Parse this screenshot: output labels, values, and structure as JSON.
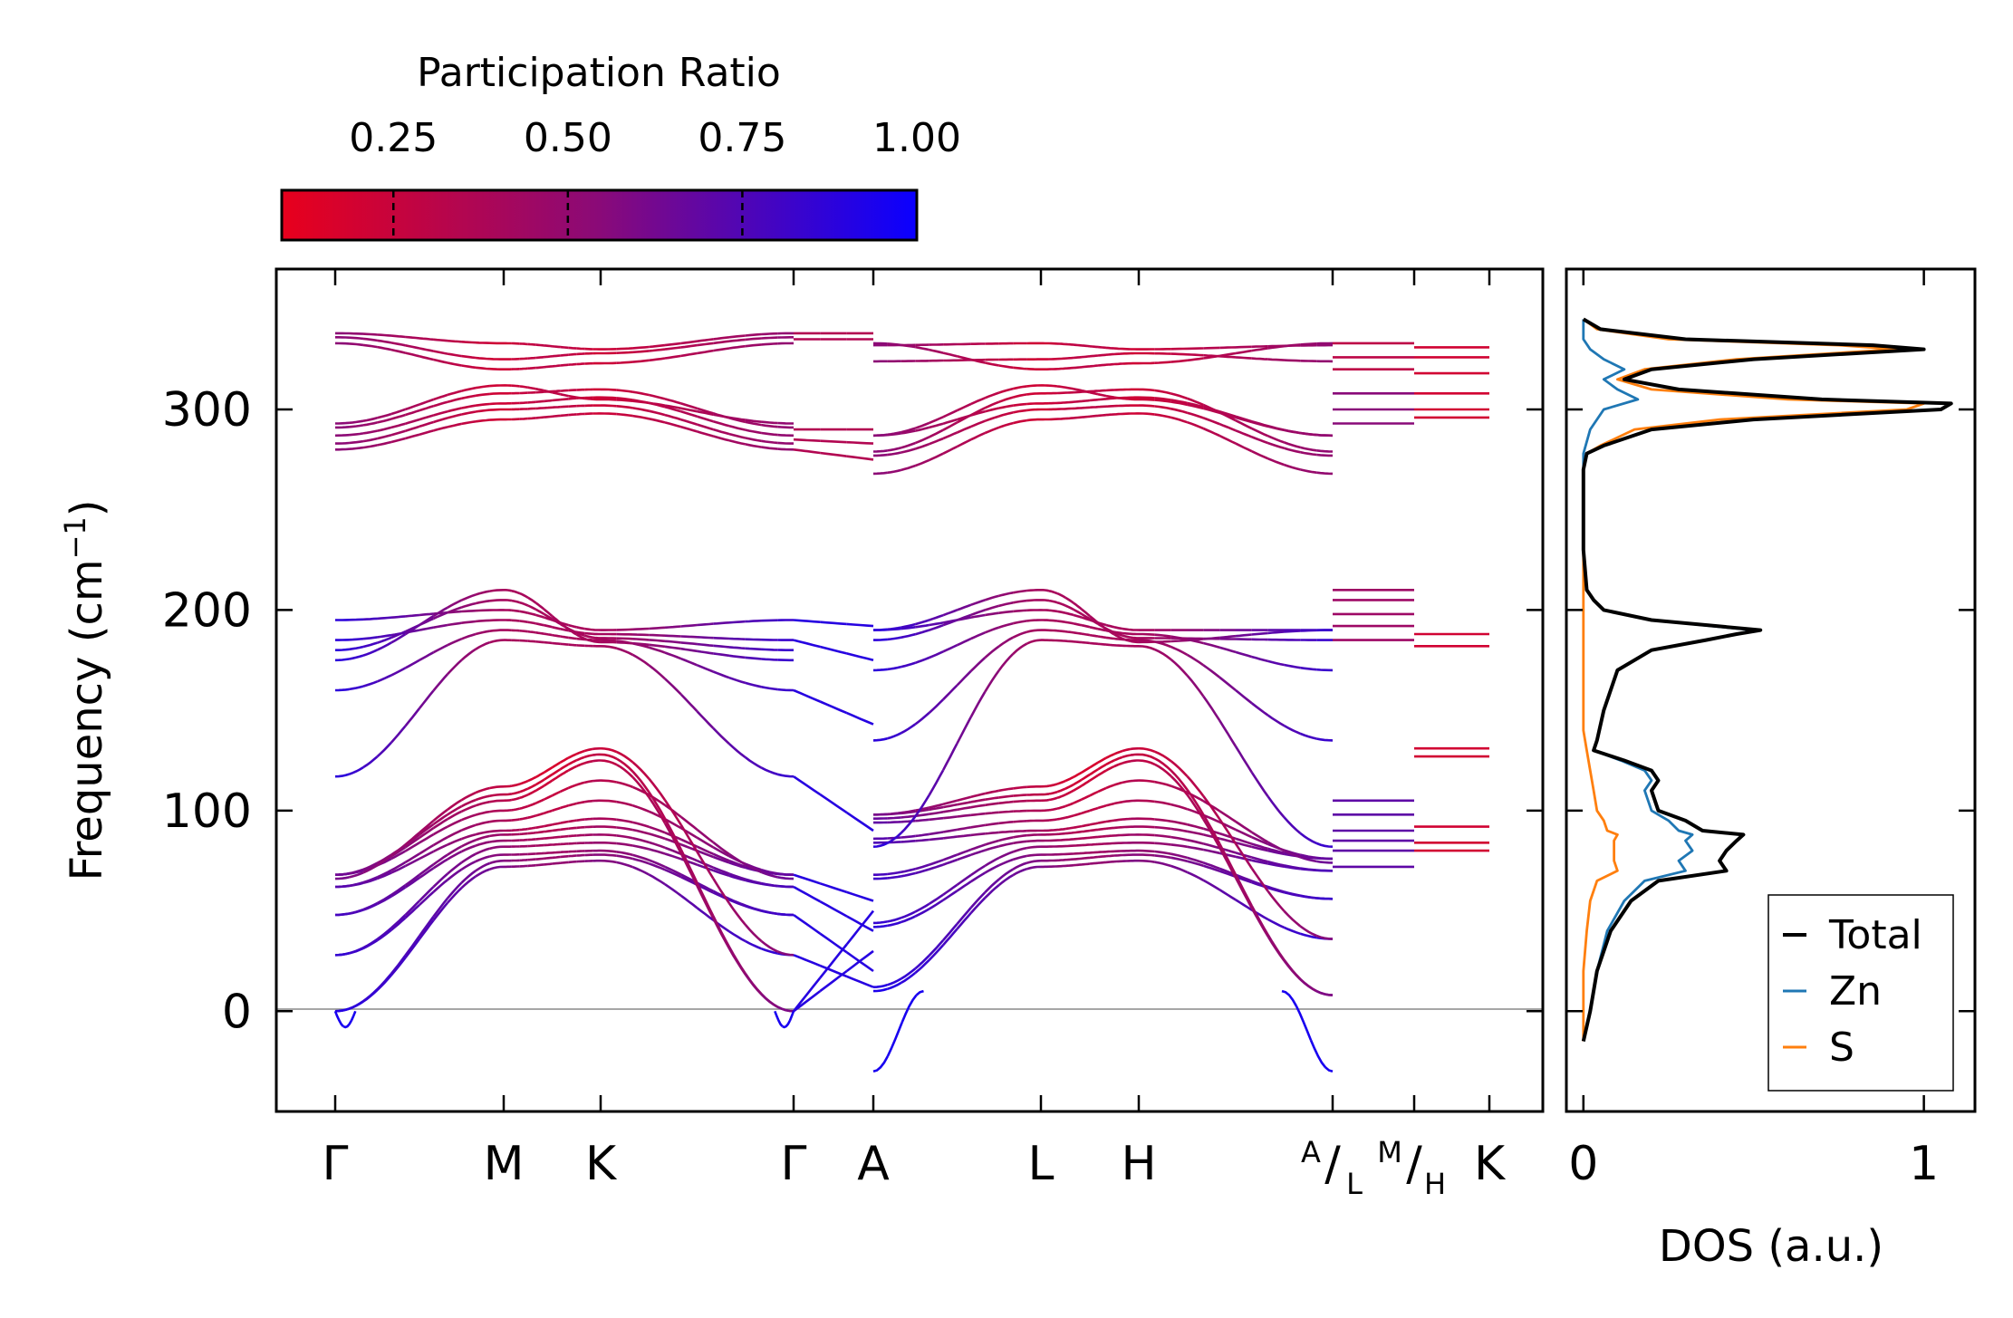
{
  "chart_data": [
    {
      "type": "line",
      "subtype": "phonon-band-structure",
      "ylabel": "Frequency (cm",
      "ylabel_sup": "−1",
      "ylabel_close": ")",
      "ylim": [
        -50,
        370
      ],
      "yticks": [
        0,
        100,
        200,
        300
      ],
      "ytick_labels": [
        "0",
        "100",
        "200",
        "300"
      ],
      "path_segments": [
        {
          "labels": [
            "Γ",
            "M",
            "K",
            "Γ"
          ],
          "positions": [
            0,
            1,
            1.577,
            2.732
          ]
        },
        {
          "labels": [
            "A",
            "L",
            "H",
            "A/L"
          ],
          "positions": [
            3.2,
            4.2,
            4.777,
            5.932
          ]
        },
        {
          "labels": [
            "M/H",
            "K"
          ],
          "positions": [
            6.4,
            6.862
          ]
        }
      ],
      "xtick_labels": [
        "Γ",
        "M",
        "K",
        "Γ",
        "A",
        "L",
        "H",
        "A",
        "L",
        "M",
        "H",
        "K"
      ],
      "colorbar": {
        "title": "Participation Ratio",
        "ticks": [
          0.25,
          0.5,
          0.75,
          1.0
        ],
        "tick_labels": [
          "0.25",
          "0.50",
          "0.75",
          "1.00"
        ],
        "range": [
          0.09,
          1.0
        ],
        "color_low": "#e8001c",
        "color_mid": "#8a0a78",
        "color_high": "#0a00ff"
      },
      "band_groups": {
        "acoustic_low": {
          "gamma": [
            0,
            28,
            48,
            62,
            68
          ],
          "zone": [
            72,
            78,
            84,
            90,
            105
          ]
        },
        "upper_low": {
          "gamma": [
            117,
            160,
            185,
            195
          ],
          "zone": [
            185,
            190,
            200,
            210
          ]
        },
        "optical": {
          "gamma": [
            280,
            285,
            290,
            335,
            338
          ],
          "zone": [
            295,
            300,
            310,
            320,
            330
          ]
        }
      },
      "flat_levels_AL": [
        72,
        80,
        85,
        90,
        98,
        105,
        185,
        192,
        198,
        205,
        210,
        293,
        300,
        308,
        320,
        326,
        333
      ],
      "flat_levels_MH": [
        80,
        84,
        92,
        127,
        131,
        182,
        188,
        296,
        300,
        308,
        318,
        326,
        331
      ]
    },
    {
      "type": "line",
      "subtype": "density-of-states",
      "xlabel": "DOS (a.u.)",
      "xlim": [
        -0.05,
        1.15
      ],
      "xticks": [
        0,
        1
      ],
      "xtick_labels": [
        "0",
        "1"
      ],
      "ylim": [
        -50,
        370
      ],
      "series": [
        {
          "name": "Total",
          "color": "#000000",
          "freq": [
            -15,
            0,
            20,
            40,
            55,
            65,
            70,
            75,
            80,
            85,
            88,
            90,
            95,
            100,
            110,
            115,
            120,
            125,
            130,
            135,
            150,
            170,
            180,
            185,
            188,
            190,
            195,
            200,
            205,
            210,
            230,
            270,
            278,
            282,
            290,
            295,
            300,
            303,
            305,
            310,
            315,
            320,
            325,
            330,
            332,
            335,
            340,
            345
          ],
          "value": [
            0.0,
            0.02,
            0.04,
            0.08,
            0.14,
            0.22,
            0.42,
            0.4,
            0.42,
            0.45,
            0.47,
            0.35,
            0.3,
            0.22,
            0.2,
            0.22,
            0.2,
            0.12,
            0.03,
            0.04,
            0.06,
            0.1,
            0.2,
            0.36,
            0.45,
            0.52,
            0.2,
            0.06,
            0.03,
            0.01,
            0.0,
            0.0,
            0.01,
            0.06,
            0.2,
            0.5,
            1.05,
            1.08,
            0.7,
            0.28,
            0.12,
            0.2,
            0.5,
            1.0,
            0.85,
            0.3,
            0.05,
            0.0
          ]
        },
        {
          "name": "Zn",
          "color": "#1f77b4",
          "freq": [
            -15,
            0,
            20,
            40,
            55,
            65,
            70,
            75,
            80,
            85,
            88,
            90,
            95,
            100,
            110,
            115,
            120,
            125,
            130,
            135,
            150,
            170,
            180,
            185,
            188,
            190,
            195,
            200,
            205,
            210,
            230,
            270,
            278,
            290,
            300,
            305,
            310,
            315,
            320,
            325,
            330,
            335,
            340,
            345
          ],
          "value": [
            0.0,
            0.02,
            0.04,
            0.07,
            0.12,
            0.18,
            0.3,
            0.28,
            0.32,
            0.3,
            0.32,
            0.28,
            0.25,
            0.2,
            0.18,
            0.2,
            0.18,
            0.11,
            0.03,
            0.04,
            0.06,
            0.1,
            0.2,
            0.36,
            0.45,
            0.5,
            0.2,
            0.06,
            0.03,
            0.01,
            0.0,
            0.0,
            0.0,
            0.02,
            0.06,
            0.16,
            0.1,
            0.06,
            0.12,
            0.06,
            0.02,
            0.0,
            0.0,
            0.0
          ]
        },
        {
          "name": "S",
          "color": "#ff7f0e",
          "freq": [
            -15,
            0,
            20,
            40,
            55,
            65,
            70,
            75,
            80,
            85,
            88,
            90,
            95,
            100,
            110,
            120,
            130,
            140,
            150,
            170,
            190,
            200,
            210,
            230,
            270,
            278,
            282,
            290,
            295,
            300,
            303,
            305,
            310,
            315,
            320,
            325,
            330,
            332,
            335,
            340,
            345
          ],
          "value": [
            0.0,
            0.0,
            0.0,
            0.01,
            0.02,
            0.04,
            0.1,
            0.09,
            0.09,
            0.09,
            0.1,
            0.07,
            0.06,
            0.04,
            0.03,
            0.02,
            0.01,
            0.0,
            0.0,
            0.0,
            0.0,
            0.0,
            0.0,
            0.0,
            0.0,
            0.01,
            0.05,
            0.15,
            0.4,
            0.95,
            1.0,
            0.6,
            0.2,
            0.1,
            0.18,
            0.45,
            0.92,
            0.75,
            0.25,
            0.04,
            0.0
          ]
        }
      ],
      "legend": {
        "entries": [
          "Total",
          "Zn",
          "S"
        ],
        "loc": "lower right"
      }
    }
  ]
}
